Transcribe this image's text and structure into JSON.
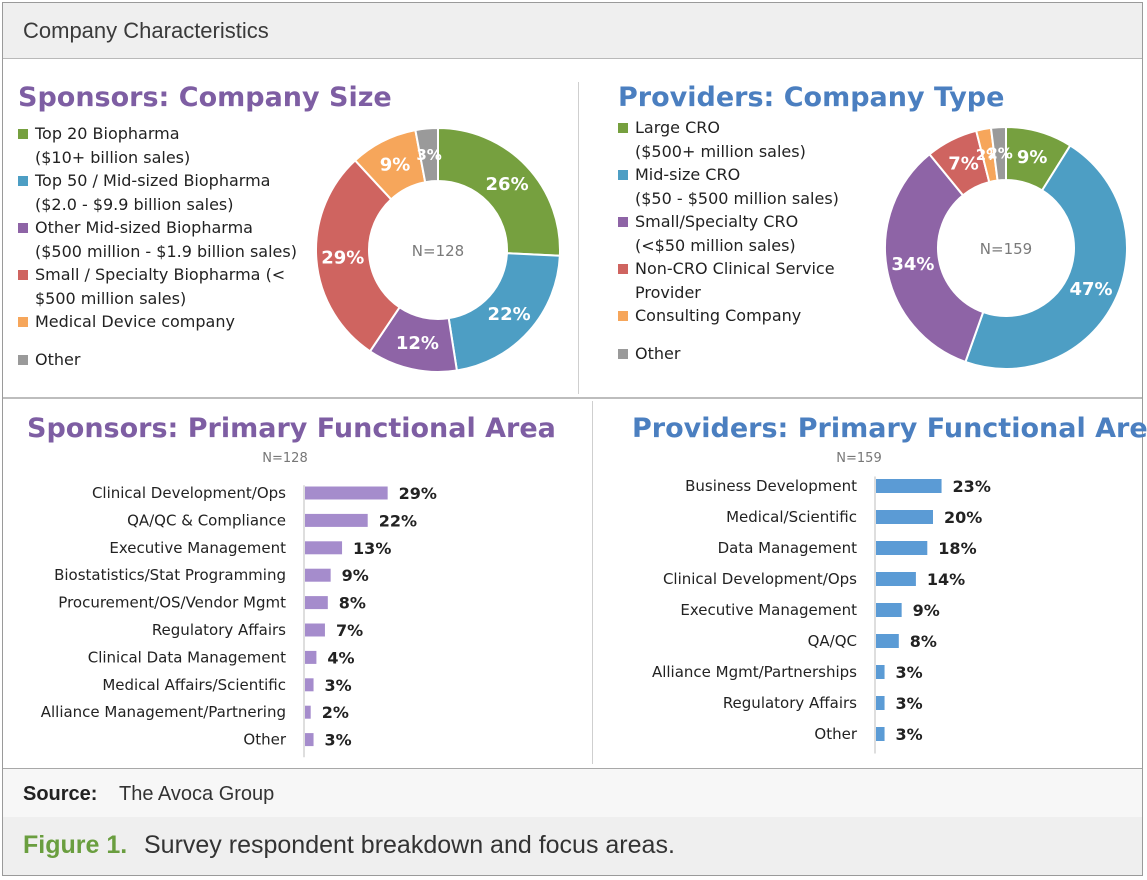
{
  "header": {
    "title": "Company Characteristics"
  },
  "colors": {
    "green": "#76a03f",
    "teal": "#4d9ec4",
    "purple": "#8e64a6",
    "red": "#cf6460",
    "orange": "#f6a65b",
    "gray": "#9a9a9a",
    "purple_title": "#7e5ea3",
    "blue_title": "#4b7fc0",
    "bar_purple": "#a58ccc",
    "bar_blue": "#5b9bd5",
    "figure_green": "#6a9e3f"
  },
  "source": {
    "label": "Source:",
    "text": "The Avoca Group"
  },
  "caption": {
    "label": "Figure 1.",
    "text": "Survey respondent breakdown and focus areas."
  },
  "chart_data": [
    {
      "id": "sponsors_size",
      "type": "pie",
      "title": "Sponsors: Company Size",
      "center_label": "N=128",
      "slices": [
        {
          "label_lines": [
            "Top 20 Biopharma",
            "($10+ billion sales)"
          ],
          "value": 26,
          "color": "#76a03f",
          "value_label": "26%"
        },
        {
          "label_lines": [
            "Top 50 / Mid-sized Biopharma",
            "($2.0 - $9.9 billion sales)"
          ],
          "value": 22,
          "color": "#4d9ec4",
          "value_label": "22%"
        },
        {
          "label_lines": [
            "Other Mid-sized Biopharma",
            "($500 million - $1.9 billion sales)"
          ],
          "value": 12,
          "color": "#8e64a6",
          "value_label": "12%"
        },
        {
          "label_lines": [
            "Small / Specialty Biopharma (<",
            "$500 million sales)"
          ],
          "value": 29,
          "color": "#cf6460",
          "value_label": "29%"
        },
        {
          "label_lines": [
            "Medical Device company"
          ],
          "value": 9,
          "color": "#f6a65b",
          "value_label": "9%"
        },
        {
          "label_lines": [
            "Other"
          ],
          "value": 3,
          "color": "#9a9a9a",
          "value_label": "3%"
        }
      ]
    },
    {
      "id": "providers_type",
      "type": "pie",
      "title": "Providers: Company Type",
      "center_label": "N=159",
      "slices": [
        {
          "label_lines": [
            "Large CRO",
            "($500+ million sales)"
          ],
          "value": 9,
          "color": "#76a03f",
          "value_label": "9%"
        },
        {
          "label_lines": [
            "Mid-size CRO",
            "($50 - $500 million sales)"
          ],
          "value": 47,
          "color": "#4d9ec4",
          "value_label": "47%"
        },
        {
          "label_lines": [
            "Small/Specialty CRO",
            "(<$50 million sales)"
          ],
          "value": 34,
          "color": "#8e64a6",
          "value_label": "34%"
        },
        {
          "label_lines": [
            "Non-CRO Clinical Service",
            "Provider"
          ],
          "value": 7,
          "color": "#cf6460",
          "value_label": "7%"
        },
        {
          "label_lines": [
            "Consulting Company"
          ],
          "value": 2,
          "color": "#f6a65b",
          "value_label": "2%"
        },
        {
          "label_lines": [
            "Other"
          ],
          "value": 2,
          "color": "#9a9a9a",
          "value_label": "2%"
        }
      ]
    },
    {
      "id": "sponsors_functional",
      "type": "bar",
      "title": "Sponsors: Primary Functional Area",
      "subtitle": "N=128",
      "categories": [
        "Clinical Development/Ops",
        "QA/QC & Compliance",
        "Executive Management",
        "Biostatistics/Stat Programming",
        "Procurement/OS/Vendor Mgmt",
        "Regulatory Affairs",
        "Clinical Data Management",
        "Medical Affairs/Scientific",
        "Alliance Management/Partnering",
        "Other"
      ],
      "values": [
        29,
        22,
        13,
        9,
        8,
        7,
        4,
        3,
        2,
        3
      ],
      "value_labels": [
        "29%",
        "22%",
        "13%",
        "9%",
        "8%",
        "7%",
        "4%",
        "3%",
        "2%",
        "3%"
      ]
    },
    {
      "id": "providers_functional",
      "type": "bar",
      "title": "Providers: Primary Functional Area",
      "subtitle": "N=159",
      "categories": [
        "Business Development",
        "Medical/Scientific",
        "Data Management",
        "Clinical Development/Ops",
        "Executive Management",
        "QA/QC",
        "Alliance Mgmt/Partnerships",
        "Regulatory Affairs",
        "Other"
      ],
      "values": [
        23,
        20,
        18,
        14,
        9,
        8,
        3,
        3,
        3
      ],
      "value_labels": [
        "23%",
        "20%",
        "18%",
        "14%",
        "9%",
        "8%",
        "3%",
        "3%",
        "3%"
      ]
    }
  ]
}
